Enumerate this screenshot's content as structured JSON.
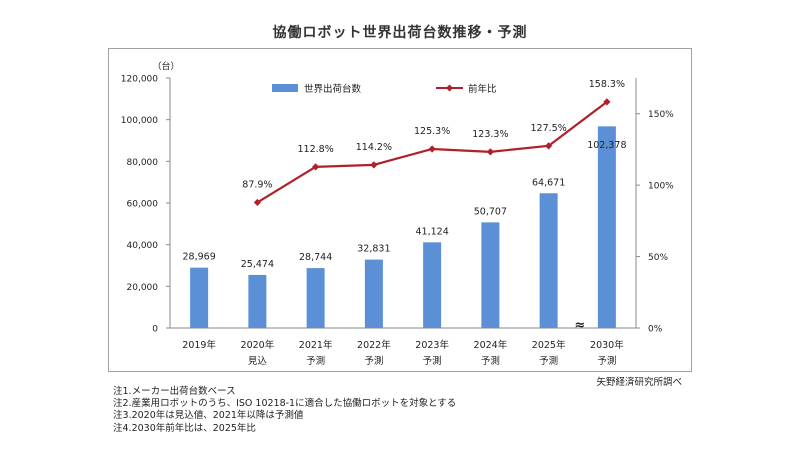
{
  "chart_data": {
    "type": "bar",
    "title": "協働ロボット世界出荷台数推移・予測",
    "unit_label": "（台）",
    "categories": [
      "2019年",
      "2020年",
      "2021年",
      "2022年",
      "2023年",
      "2024年",
      "2025年",
      "2030年"
    ],
    "category_sublabels": [
      "",
      "見込",
      "予測",
      "予測",
      "予測",
      "予測",
      "予測",
      "予測"
    ],
    "series": [
      {
        "name": "世界出荷台数",
        "type": "bar",
        "axis": "left",
        "color": "#5b8fd6",
        "values": [
          28969,
          25474,
          28744,
          32831,
          41124,
          50707,
          64671,
          102378
        ],
        "labels": [
          "28,969",
          "25,474",
          "28,744",
          "32,831",
          "41,124",
          "50,707",
          "64,671",
          "102,378"
        ]
      },
      {
        "name": "前年比",
        "type": "line",
        "axis": "right",
        "color": "#b0202a",
        "values": [
          null,
          87.9,
          112.8,
          114.2,
          125.3,
          123.3,
          127.5,
          158.3
        ],
        "labels": [
          "",
          "87.9%",
          "112.8%",
          "114.2%",
          "125.3%",
          "123.3%",
          "127.5%",
          "158.3%"
        ]
      }
    ],
    "y_left": {
      "min": 0,
      "max": 120000,
      "ticks": [
        "0",
        "20,000",
        "40,000",
        "60,000",
        "80,000",
        "100,000",
        "120,000"
      ]
    },
    "y_right": {
      "min": 0,
      "max": 175,
      "ticks": [
        "0%",
        "50%",
        "100%",
        "150%"
      ]
    },
    "axis_break": {
      "category": "2030年",
      "symbol": "≈"
    },
    "grid": false,
    "legend_position": "top"
  },
  "notes": [
    "注1.メーカー出荷台数ベース",
    "注2.産業用ロボットのうち、ISO 10218-1に適合した協働ロボットを対象とする",
    "注3.2020年は見込値、2021年以降は予測値",
    "注4.2030年前年比は、2025年比"
  ],
  "source": "矢野経済研究所調べ"
}
